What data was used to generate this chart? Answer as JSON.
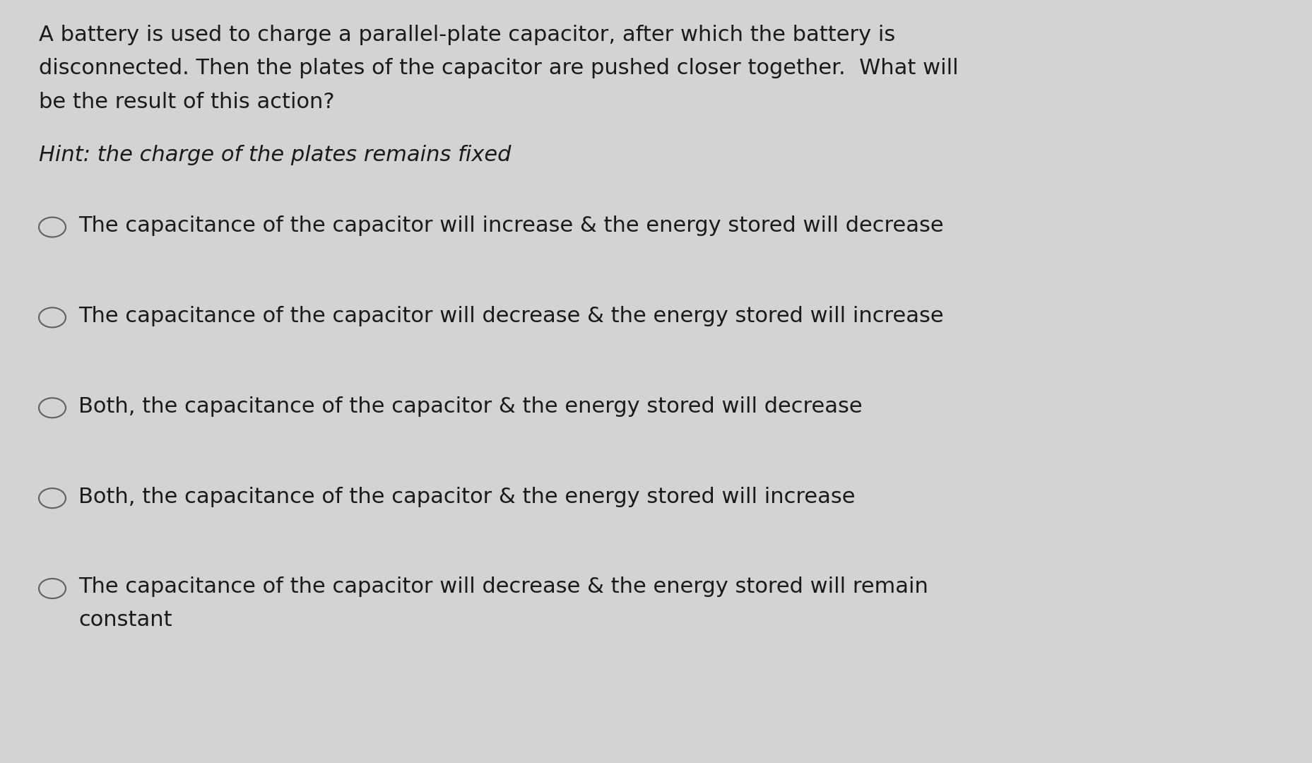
{
  "background_color": "#d3d3d3",
  "text_color": "#1a1a1a",
  "question_lines": [
    "A battery is used to charge a parallel-plate capacitor, after which the battery is",
    "disconnected. Then the plates of the capacitor are pushed closer together.  What will",
    "be the result of this action?"
  ],
  "hint_line": "Hint: the charge of the plates remains fixed",
  "options": [
    "The capacitance of the capacitor will increase & the energy stored will decrease",
    "The capacitance of the capacitor will decrease & the energy stored will increase",
    "Both, the capacitance of the capacitor & the energy stored will decrease",
    "Both, the capacitance of the capacitor & the energy stored will increase",
    "The capacitance of the capacitor will decrease & the energy stored will remain\nconstant"
  ],
  "question_fontsize": 22,
  "hint_fontsize": 22,
  "option_fontsize": 22,
  "fig_width": 18.57,
  "fig_height": 10.8,
  "dpi": 100
}
